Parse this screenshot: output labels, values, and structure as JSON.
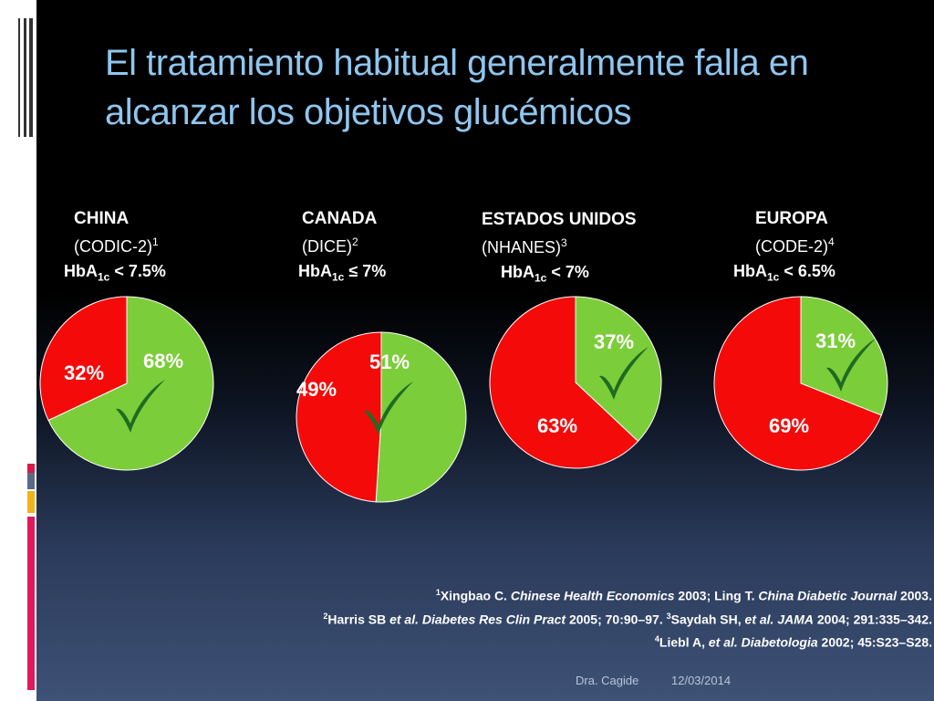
{
  "slide": {
    "title_line1": "El tratamiento habitual generalmente falla en",
    "title_line2": "alcanzar los objetivos glucémicos"
  },
  "chart_data": [
    {
      "type": "pie",
      "region": "CHINA",
      "study": "(CODIC-2)",
      "study_ref": "1",
      "target_prefix": "HbA",
      "target_sub": "1c",
      "target_rel": "< 7.5%",
      "slices": [
        {
          "label": "68%",
          "value": 68,
          "color": "#7ccd3a"
        },
        {
          "label": "32%",
          "value": 32,
          "color": "#f50a0a"
        }
      ]
    },
    {
      "type": "pie",
      "region": "CANADA",
      "study": "(DICE)",
      "study_ref": "2",
      "target_prefix": "HbA",
      "target_sub": "1c",
      "target_rel": "≤ 7%",
      "slices": [
        {
          "label": "51%",
          "value": 51,
          "color": "#7ccd3a"
        },
        {
          "label": "49%",
          "value": 49,
          "color": "#f50a0a"
        }
      ]
    },
    {
      "type": "pie",
      "region": "ESTADOS UNIDOS",
      "study": "(NHANES)",
      "study_ref": "3",
      "target_prefix": "HbA",
      "target_sub": "1c",
      "target_rel": "< 7%",
      "slices": [
        {
          "label": "37%",
          "value": 37,
          "color": "#7ccd3a"
        },
        {
          "label": "63%",
          "value": 63,
          "color": "#f50a0a"
        }
      ]
    },
    {
      "type": "pie",
      "region": "EUROPA",
      "study": "(CODE-2)",
      "study_ref": "4",
      "target_prefix": "HbA",
      "target_sub": "1c",
      "target_rel": "< 6.5%",
      "slices": [
        {
          "label": "31%",
          "value": 31,
          "color": "#7ccd3a"
        },
        {
          "label": "69%",
          "value": 69,
          "color": "#f50a0a"
        }
      ]
    }
  ],
  "check_icon": {
    "name": "checkmark-icon",
    "color": "#1f6b22"
  },
  "references": {
    "r1_num": "1",
    "r1_a": "Xingbao C. ",
    "r1_b": "Chinese Health Economics",
    "r1_c": " 2003; Ling T. ",
    "r1_d": "China Diabetic Journal",
    "r1_e": " 2003.",
    "r2_num": "2",
    "r2_a": "Harris SB ",
    "r2_b": "et al. Diabetes Res Clin Pract",
    "r2_c": " 2005; 70:90–97. ",
    "r3_num": "3",
    "r3_a": "Saydah SH, ",
    "r3_b": "et al. JAMA",
    "r3_c": " 2004; 291:335–342.",
    "r4_num": "4",
    "r4_a": "Liebl A, ",
    "r4_b": "et al. Diabetologia",
    "r4_c": " 2002; 45:S23–S28."
  },
  "footer": {
    "author": "Dra. Cagide",
    "date": "12/03/2014"
  },
  "accent_colors": {
    "title": "#8fc6ef",
    "panel": "#ffffff"
  }
}
